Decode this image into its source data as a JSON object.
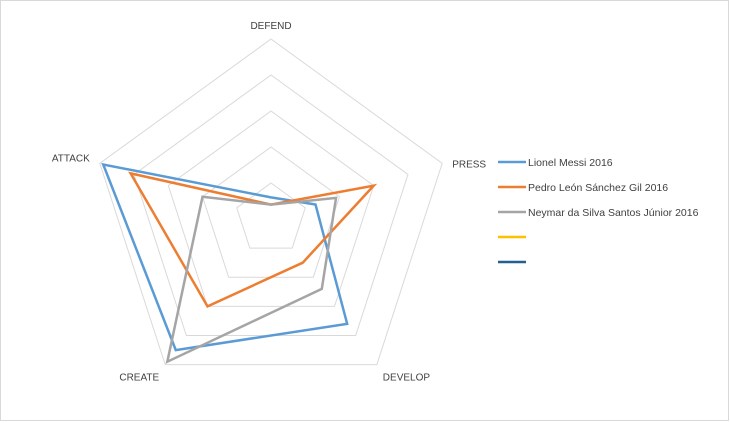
{
  "chart_data": {
    "type": "radar",
    "title": "",
    "axes": [
      "DEFEND",
      "PRESS",
      "DEVELOP",
      "CREATE",
      "ATTACK"
    ],
    "range": [
      0,
      5
    ],
    "grid": true,
    "legend_position": "right",
    "series": [
      {
        "name": "Lionel Messi 2016",
        "color": "#5B9BD5",
        "values": [
          0.6,
          1.3,
          3.6,
          4.5,
          4.9
        ]
      },
      {
        "name": "Pedro León Sánchez Gil 2016",
        "color": "#ED7D31",
        "values": [
          0.4,
          3.0,
          1.5,
          3.0,
          4.1
        ]
      },
      {
        "name": "Neymar da Silva Santos Júnior 2016",
        "color": "#A5A5A5",
        "values": [
          0.4,
          1.9,
          2.4,
          4.9,
          2.0
        ]
      },
      {
        "name": "",
        "color": "#FFC000",
        "values": []
      },
      {
        "name": "",
        "color": "#255E91",
        "values": []
      }
    ]
  }
}
